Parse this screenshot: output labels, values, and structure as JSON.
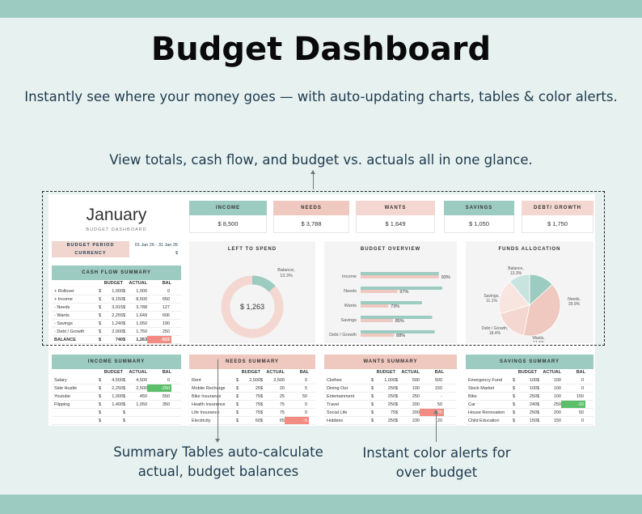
{
  "headline": "Budget Dashboard",
  "subtitle": "Instantly see where your money goes — with auto-updating charts, tables & color alerts.",
  "subtitle2": "View totals, cash flow, and budget vs. actuals all in one glance.",
  "annotation_left": "Summary Tables auto-calculate actual, budget balances",
  "annotation_right": "Instant color alerts for over budget",
  "colors": {
    "band": "#9ccbc1",
    "teal": "#9ccbc1",
    "salmon": "#efc8bf",
    "red_alert": "#f28c82",
    "green_alert": "#5bbf6a"
  },
  "dashboard": {
    "month": "January",
    "month_sub": "BUDGET DASHBOARD",
    "period_label": "BUDGET PERIOD",
    "period_from": "01 Jan 26",
    "period_dash": "-",
    "period_to": "31 Jan 26",
    "currency_label": "CURRENCY",
    "currency_value": "$",
    "kpis": [
      {
        "label": "INCOME",
        "value": "$ 8,500",
        "color": "#9ccbc1"
      },
      {
        "label": "NEEDS",
        "value": "$ 3,788",
        "color": "#efc8bf"
      },
      {
        "label": "WANTS",
        "value": "$ 1,649",
        "color": "#f4d7d0"
      },
      {
        "label": "SAVINGS",
        "value": "$ 1,050",
        "color": "#9ccbc1"
      },
      {
        "label": "DEBT/ GROWTH",
        "value": "$ 1,750",
        "color": "#f4d7d0"
      }
    ],
    "cashflow": {
      "title": "CASH FLOW SUMMARY",
      "cols": [
        "BUDGET",
        "ACTUAL",
        "BAL"
      ],
      "rows": [
        {
          "label": "+ Rollover",
          "b": "1,000",
          "a": "1,000",
          "bal": "0"
        },
        {
          "label": "+ Income",
          "b": "9,150",
          "a": "8,500",
          "bal": "650"
        },
        {
          "label": "- Needs",
          "b": "3,915",
          "a": "3,788",
          "bal": "127"
        },
        {
          "label": "- Wants",
          "b": "2,255",
          "a": "1,649",
          "bal": "606"
        },
        {
          "label": "- Savings",
          "b": "1,240",
          "a": "1,050",
          "bal": "190"
        },
        {
          "label": "- Debt / Growth",
          "b": "2,000",
          "a": "1,750",
          "bal": "250"
        },
        {
          "label": "BALANCE",
          "b": "740",
          "a": "1,263",
          "bal": "-523"
        }
      ]
    },
    "left_to_spend": {
      "title": "LEFT TO SPEND",
      "value": "$ 1,263",
      "balance_label": "Balance,",
      "balance_pct": "13.3%",
      "fraction": 0.133
    },
    "budget_overview": {
      "title": "BUDGET OVERVIEW",
      "items": [
        {
          "label": "Income",
          "pct": "93%",
          "value": 93
        },
        {
          "label": "Needs",
          "pct": "97%",
          "value": 97
        },
        {
          "label": "Wants",
          "pct": "73%",
          "value": 73
        },
        {
          "label": "Savings",
          "pct": "85%",
          "value": 85
        },
        {
          "label": "Debt / Growth",
          "pct": "88%",
          "value": 88
        }
      ]
    },
    "funds_allocation": {
      "title": "FUNDS ALLOCATION",
      "slices": [
        {
          "label": "Balance,",
          "pct": "13.3%",
          "value": 13.3,
          "color": "#9ccbc1"
        },
        {
          "label": "Needs,",
          "pct": "39.9%",
          "value": 39.9,
          "color": "#efc8bf"
        },
        {
          "label": "Wants,",
          "pct": "17.4%",
          "value": 17.4,
          "color": "#f4d7d0"
        },
        {
          "label": "Debt / Growth,",
          "pct": "18.4%",
          "value": 18.4,
          "color": "#f8e5e0"
        },
        {
          "label": "Savings,",
          "pct": "11.1%",
          "value": 11.1,
          "color": "#c7e4de"
        }
      ]
    },
    "income_summary": {
      "title": "INCOME SUMMARY",
      "cols": [
        "BUDGET",
        "ACTUAL",
        "BAL"
      ],
      "rows": [
        {
          "label": "Salary",
          "b": "4,500",
          "a": "4,500",
          "bal": "0"
        },
        {
          "label": "Side Hustle",
          "b": "2,250",
          "a": "2,500",
          "bal": "-250"
        },
        {
          "label": "Youtube",
          "b": "1,000",
          "a": "450",
          "bal": "550"
        },
        {
          "label": "Flipping",
          "b": "1,400",
          "a": "1,050",
          "bal": "350"
        },
        {
          "label": "",
          "b": "",
          "a": "",
          "bal": ""
        },
        {
          "label": "",
          "b": "",
          "a": "",
          "bal": ""
        }
      ]
    },
    "needs_summary": {
      "title": "NEEDS SUMMARY",
      "cols": [
        "BUDGET",
        "ACTUAL",
        "BAL"
      ],
      "rows": [
        {
          "label": "Rent",
          "b": "2,500",
          "a": "2,500",
          "bal": "0"
        },
        {
          "label": "Mobile Recharge",
          "b": "25",
          "a": "20",
          "bal": "5"
        },
        {
          "label": "Bike Insurance",
          "b": "75",
          "a": "25",
          "bal": "50"
        },
        {
          "label": "Health Insurance",
          "b": "75",
          "a": "75",
          "bal": "0"
        },
        {
          "label": "Life Insurance",
          "b": "75",
          "a": "75",
          "bal": "0"
        },
        {
          "label": "Electricity",
          "b": "60",
          "a": "65",
          "bal": "-5"
        }
      ]
    },
    "wants_summary": {
      "title": "WANTS SUMMARY",
      "cols": [
        "BUDGET",
        "ACTUAL",
        "BAL"
      ],
      "rows": [
        {
          "label": "Clothes",
          "b": "1,000",
          "a": "500",
          "bal": "500"
        },
        {
          "label": "Dining Out",
          "b": "250",
          "a": "100",
          "bal": "150"
        },
        {
          "label": "Entertainment",
          "b": "250",
          "a": "250",
          "bal": "-"
        },
        {
          "label": "Travel",
          "b": "250",
          "a": "200",
          "bal": "50"
        },
        {
          "label": "Social Life",
          "b": "75",
          "a": "200",
          "bal": "-125"
        },
        {
          "label": "Hobbies",
          "b": "250",
          "a": "230",
          "bal": "20"
        }
      ]
    },
    "savings_summary": {
      "title": "SAVINGS SUMMARY",
      "cols": [
        "BUDGET",
        "ACTUAL",
        "BAL"
      ],
      "rows": [
        {
          "label": "Emergency Fund",
          "b": "100",
          "a": "100",
          "bal": "0"
        },
        {
          "label": "Stock Market",
          "b": "100",
          "a": "100",
          "bal": "0"
        },
        {
          "label": "Bike",
          "b": "250",
          "a": "100",
          "bal": "150"
        },
        {
          "label": "Car",
          "b": "240",
          "a": "250",
          "bal": "-10"
        },
        {
          "label": "House Renovation",
          "b": "250",
          "a": "200",
          "bal": "50"
        },
        {
          "label": "Child Education",
          "b": "150",
          "a": "150",
          "bal": "0"
        }
      ]
    }
  }
}
